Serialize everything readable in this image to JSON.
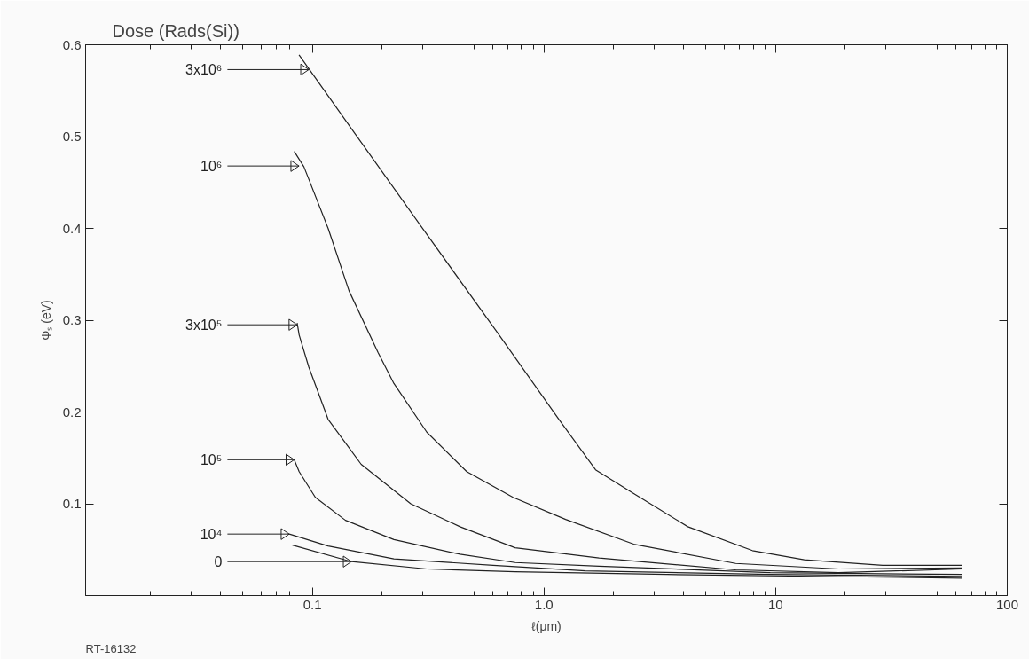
{
  "chart_data": {
    "type": "line",
    "title": "Dose (Rads(Si))",
    "xlabel": "ℓ(μm)",
    "ylabel": "Φₛ (eV)",
    "log": "x",
    "line_style": "solid",
    "xlim": [
      0.0105,
      100
    ],
    "ylim": [
      0,
      0.6
    ],
    "xticks": [
      0.1,
      {
        "value": 1,
        "label": "1.0"
      },
      10,
      100
    ],
    "yticks": [
      0.1,
      0.2,
      0.3,
      0.4,
      0.5,
      0.6
    ],
    "series": [
      {
        "color": "#222222",
        "x": [
          0.0876,
          0.153,
          0.309,
          0.627,
          1.16,
          1.67,
          2.44,
          4.18,
          7.94,
          13.3,
          29,
          64
        ],
        "values": [
          0.589,
          0.503,
          0.395,
          0.287,
          0.192,
          0.137,
          0.111,
          0.075,
          0.049,
          0.039,
          0.033,
          0.033
        ]
      },
      {
        "color": "#222222",
        "x": [
          0.0835,
          0.092,
          0.117,
          0.144,
          0.192,
          0.225,
          0.312,
          0.464,
          0.735,
          1.24,
          2.44,
          6.72,
          18.7,
          64
        ],
        "values": [
          0.484,
          0.467,
          0.4,
          0.332,
          0.265,
          0.231,
          0.178,
          0.135,
          0.107,
          0.083,
          0.056,
          0.035,
          0.029,
          0.03
        ]
      },
      {
        "color": "#222222",
        "x": [
          0.086,
          0.0877,
          0.0965,
          0.117,
          0.1625,
          0.266,
          0.434,
          0.751,
          1.73,
          6.72,
          18.7,
          64
        ],
        "values": [
          0.297,
          0.284,
          0.249,
          0.192,
          0.143,
          0.1,
          0.075,
          0.052,
          0.041,
          0.028,
          0.025,
          0.029
        ]
      },
      {
        "color": "#222222",
        "x": [
          0.0835,
          0.0877,
          0.103,
          0.139,
          0.225,
          0.434,
          0.751,
          1.73,
          9.48,
          64
        ],
        "values": [
          0.148,
          0.135,
          0.107,
          0.082,
          0.061,
          0.045,
          0.036,
          0.032,
          0.025,
          0.023
        ]
      },
      {
        "color": "#222222",
        "x": [
          0.0795,
          0.117,
          0.225,
          0.603,
          1.51,
          9.48,
          64
        ],
        "values": [
          0.067,
          0.054,
          0.04,
          0.033,
          0.027,
          0.023,
          0.021
        ]
      },
      {
        "color": "#222222",
        "x": [
          0.082,
          0.1475,
          0.312,
          0.751,
          3.4,
          64
        ],
        "values": [
          0.055,
          0.037,
          0.029,
          0.026,
          0.023,
          0.019
        ]
      }
    ],
    "annotations": [
      {
        "text": "3x10⁶",
        "x": 0.0966,
        "y": 0.573
      },
      {
        "text": "10⁶",
        "x": 0.0876,
        "y": 0.468
      },
      {
        "text": "3x10⁵",
        "x": 0.086,
        "y": 0.295
      },
      {
        "text": "10⁵",
        "x": 0.0835,
        "y": 0.148
      },
      {
        "text": "10⁴",
        "x": 0.0795,
        "y": 0.067
      },
      {
        "text": "0",
        "x": 0.1475,
        "y": 0.037
      },
      "RT-16132"
    ]
  }
}
